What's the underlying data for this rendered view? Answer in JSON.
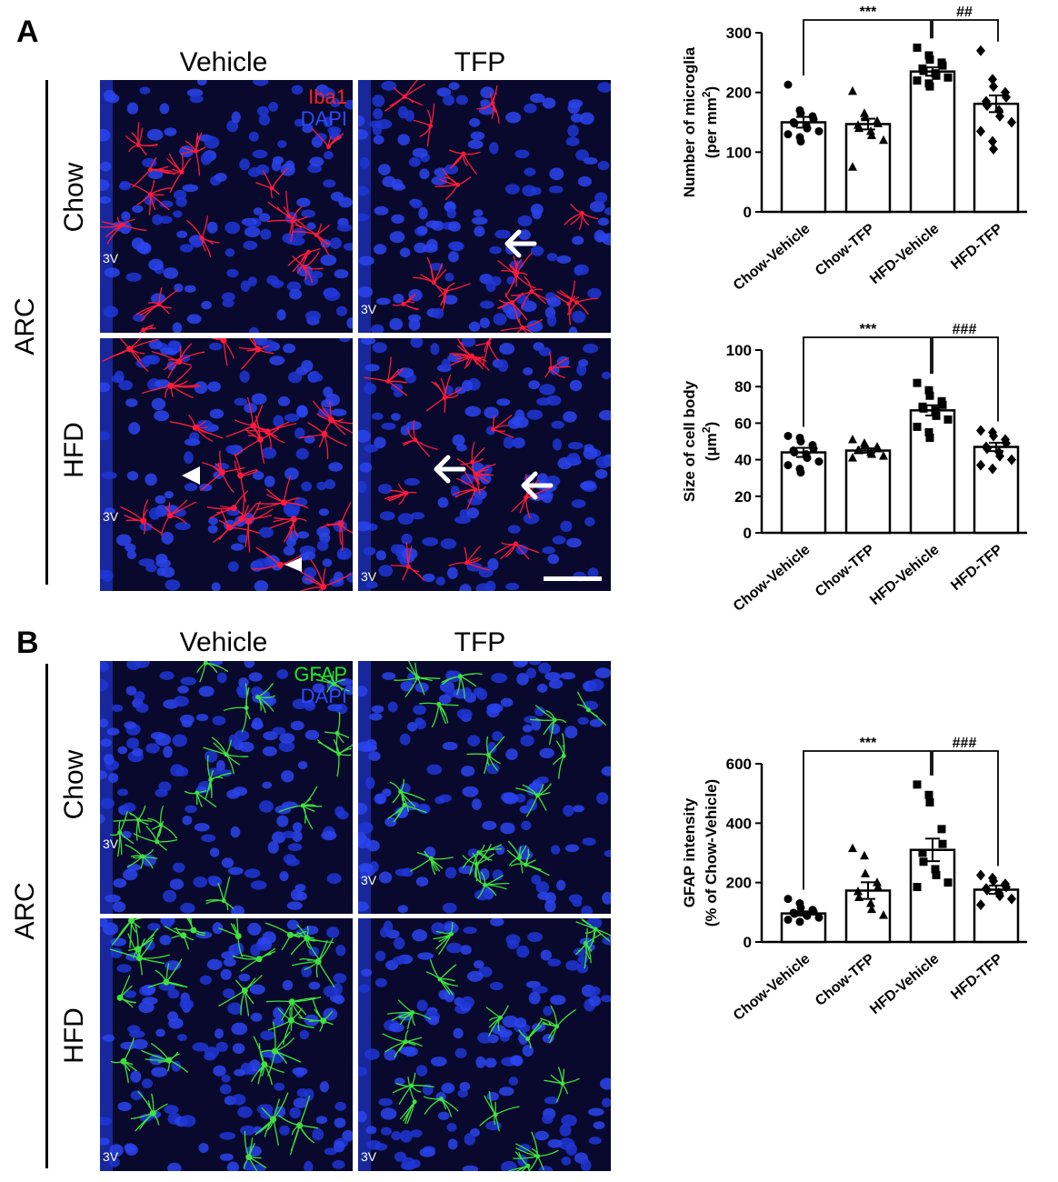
{
  "panels": [
    {
      "letter": "A",
      "columns": [
        "Vehicle",
        "TFP"
      ],
      "rows": [
        "Chow",
        "HFD"
      ],
      "region": "ARC",
      "ventricle": "3V",
      "stain": {
        "marker": "Iba1",
        "marker_color": "#ff2020",
        "counter": "DAPI",
        "counter_color": "#2040ff"
      },
      "cell_color": "#ff1a3c"
    },
    {
      "letter": "B",
      "columns": [
        "Vehicle",
        "TFP"
      ],
      "rows": [
        "Chow",
        "HFD"
      ],
      "region": "ARC",
      "ventricle": "3V",
      "stain": {
        "marker": "GFAP",
        "marker_color": "#22e622",
        "counter": "DAPI",
        "counter_color": "#2040ff"
      },
      "cell_color": "#3ee23e"
    }
  ],
  "chart_data": [
    {
      "type": "bar",
      "categories": [
        "Chow-Vehicle",
        "Chow-TFP",
        "HFD-Vehicle",
        "HFD-TFP"
      ],
      "values": [
        150,
        147,
        235,
        181
      ],
      "errors": [
        9,
        9,
        7,
        14
      ],
      "ylabel_line1": "Number of microglia",
      "ylabel_line2": "(per mm",
      "ylabel_sup": "2",
      "ylabel_end": ")",
      "ylim": [
        0,
        300
      ],
      "yticks": [
        "0",
        "100",
        "200",
        "300"
      ],
      "ytick_values": [
        0,
        100,
        200,
        300
      ],
      "points": [
        [
          213,
          170,
          165,
          160,
          155,
          150,
          148,
          145,
          140,
          135,
          130,
          125,
          118
        ],
        [
          202,
          165,
          158,
          152,
          148,
          145,
          140,
          135,
          128,
          120,
          75
        ],
        [
          275,
          262,
          255,
          250,
          245,
          240,
          236,
          232,
          228,
          225,
          220,
          215,
          210
        ],
        [
          270,
          222,
          210,
          200,
          192,
          185,
          178,
          170,
          160,
          150,
          135,
          118,
          105
        ]
      ],
      "markers": [
        "circle",
        "triangle",
        "square",
        "diamond"
      ],
      "significance": [
        {
          "from": 0,
          "to": 2,
          "label": "***"
        },
        {
          "from": 2,
          "to": 3,
          "label": "##"
        }
      ]
    },
    {
      "type": "bar",
      "categories": [
        "Chow-Vehicle",
        "Chow-TFP",
        "HFD-Vehicle",
        "HFD-TFP"
      ],
      "values": [
        44,
        45,
        67,
        47
      ],
      "errors": [
        2.5,
        1.2,
        2.8,
        2.3
      ],
      "ylabel_line1": "Size of cell body",
      "ylabel_line2": "(μm",
      "ylabel_sup": "2",
      "ylabel_end": ")",
      "ylim": [
        0,
        100
      ],
      "yticks": [
        "0",
        "20",
        "40",
        "60",
        "80",
        "100"
      ],
      "ytick_values": [
        0,
        20,
        40,
        60,
        80,
        100
      ],
      "points": [
        [
          53,
          52,
          50,
          48,
          46,
          45,
          44,
          43,
          41,
          39,
          37,
          35,
          33
        ],
        [
          51,
          49,
          48,
          47,
          46,
          45,
          45,
          44,
          43,
          42,
          41
        ],
        [
          82,
          78,
          75,
          72,
          70,
          69,
          68,
          67,
          64,
          62,
          58,
          55,
          52
        ],
        [
          56,
          55,
          53,
          51,
          49,
          47,
          46,
          44,
          42,
          40,
          37,
          35
        ]
      ],
      "markers": [
        "circle",
        "triangle",
        "square",
        "diamond"
      ],
      "significance": [
        {
          "from": 0,
          "to": 2,
          "label": "***"
        },
        {
          "from": 2,
          "to": 3,
          "label": "###"
        }
      ]
    },
    {
      "type": "bar",
      "categories": [
        "Chow-Vehicle",
        "Chow-TFP",
        "HFD-Vehicle",
        "HFD-TFP"
      ],
      "values": [
        96,
        173,
        310,
        176
      ],
      "errors": [
        7,
        28,
        38,
        14
      ],
      "ylabel_line1": "GFAP intensity",
      "ylabel_line2": "(% of Chow-Vehicle)",
      "ylabel_sup": "",
      "ylabel_end": "",
      "ylim": [
        0,
        600
      ],
      "yticks": [
        "0",
        "200",
        "400",
        "600"
      ],
      "ytick_values": [
        0,
        200,
        400,
        600
      ],
      "points": [
        [
          145,
          130,
          115,
          108,
          102,
          98,
          95,
          92,
          88,
          82,
          75,
          68
        ],
        [
          315,
          290,
          230,
          200,
          185,
          170,
          150,
          130,
          110,
          90
        ],
        [
          530,
          495,
          470,
          380,
          330,
          300,
          270,
          245,
          225,
          200,
          185
        ],
        [
          225,
          215,
          205,
          195,
          185,
          180,
          175,
          165,
          155,
          145,
          125
        ]
      ],
      "markers": [
        "circle",
        "triangle",
        "square",
        "diamond"
      ],
      "significance": [
        {
          "from": 0,
          "to": 2,
          "label": "***"
        },
        {
          "from": 2,
          "to": 3,
          "label": "###"
        }
      ]
    }
  ]
}
